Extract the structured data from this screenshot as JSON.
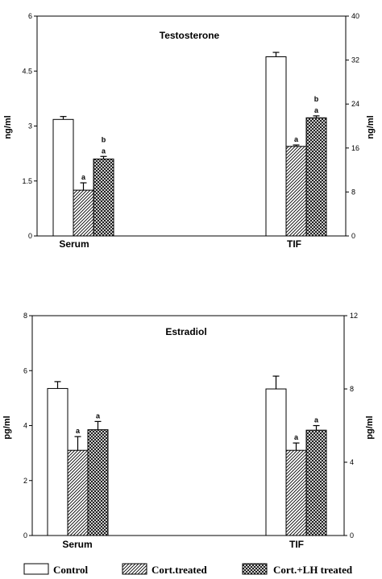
{
  "chart_data": [
    {
      "type": "bar",
      "title": "Testosterone",
      "categories": [
        "Serum",
        "TIF"
      ],
      "ylabel_left": "ng/ml",
      "ylabel_right": "ng/ml",
      "ylim_left": [
        0,
        6
      ],
      "ylim_right": [
        0,
        40
      ],
      "yticks_left": [
        "0",
        "1.5",
        "3",
        "4.5",
        "6"
      ],
      "yticks_right": [
        "0",
        "8",
        "16",
        "24",
        "32",
        "40"
      ],
      "series": [
        {
          "name": "Control",
          "values": [
            3.18,
            32.6
          ],
          "errors": [
            0.08,
            0.8
          ]
        },
        {
          "name": "Cort.treated",
          "values": [
            1.25,
            16.3
          ],
          "errors": [
            0.2,
            0.25
          ]
        },
        {
          "name": "Cort.+LH treated",
          "values": [
            2.1,
            21.5
          ],
          "errors": [
            0.07,
            0.35
          ]
        }
      ],
      "annotations": [
        {
          "category": "Serum",
          "series": "Cort.treated",
          "text": [
            "a"
          ]
        },
        {
          "category": "Serum",
          "series": "Cort.+LH treated",
          "text": [
            "b",
            "a"
          ]
        },
        {
          "category": "TIF",
          "series": "Cort.treated",
          "text": [
            "a"
          ]
        },
        {
          "category": "TIF",
          "series": "Cort.+LH treated",
          "text": [
            "b",
            "a"
          ]
        }
      ]
    },
    {
      "type": "bar",
      "title": "Estradiol",
      "categories": [
        "Serum",
        "TIF"
      ],
      "ylabel_left": "pg/ml",
      "ylabel_right": "pg/ml",
      "ylim_left": [
        0,
        8
      ],
      "ylim_right": [
        0,
        12
      ],
      "yticks_left": [
        "0",
        "2",
        "4",
        "6",
        "8"
      ],
      "yticks_right": [
        "0",
        "4",
        "8",
        "12"
      ],
      "series": [
        {
          "name": "Control",
          "values": [
            5.35,
            8.0
          ],
          "errors": [
            0.25,
            0.7
          ]
        },
        {
          "name": "Cort.treated",
          "values": [
            3.1,
            4.65
          ],
          "errors": [
            0.5,
            0.4
          ]
        },
        {
          "name": "Cort.+LH treated",
          "values": [
            3.85,
            5.75
          ],
          "errors": [
            0.3,
            0.25
          ]
        }
      ],
      "annotations": [
        {
          "category": "Serum",
          "series": "Cort.treated",
          "text": [
            "a"
          ]
        },
        {
          "category": "Serum",
          "series": "Cort.+LH treated",
          "text": [
            "a"
          ]
        },
        {
          "category": "TIF",
          "series": "Cort.treated",
          "text": [
            "a"
          ]
        },
        {
          "category": "TIF",
          "series": "Cort.+LH treated",
          "text": [
            "a"
          ]
        }
      ]
    }
  ],
  "legend": {
    "position": "bottom",
    "items": [
      {
        "label": "Control",
        "pattern": "open"
      },
      {
        "label": "Cort.treated",
        "pattern": "diagonal-hatch"
      },
      {
        "label": "Cort.+LH treated",
        "pattern": "crosshatch"
      }
    ]
  }
}
